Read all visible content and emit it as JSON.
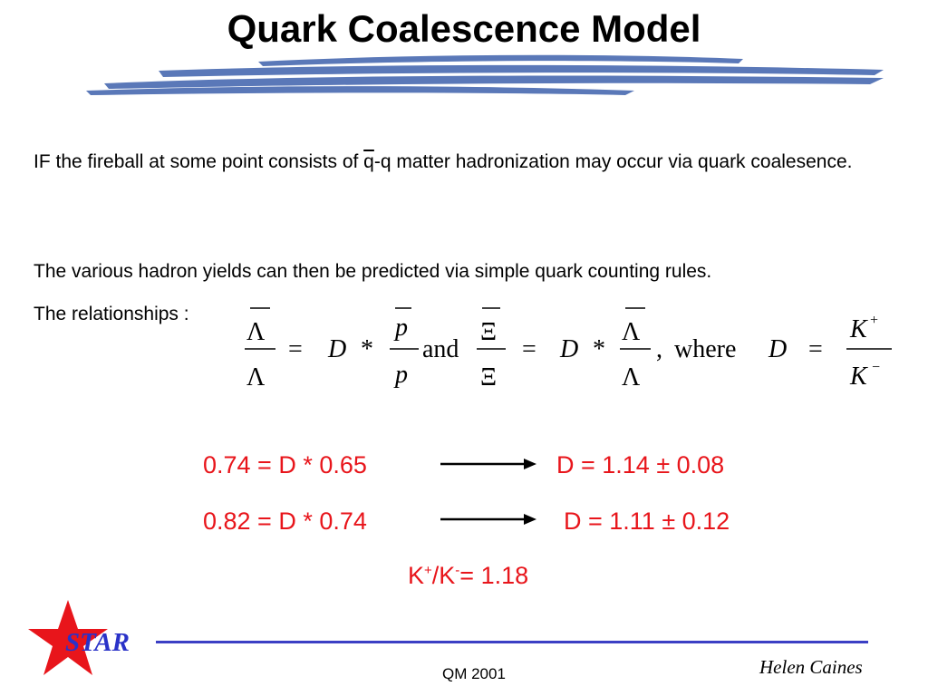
{
  "slide": {
    "title": "Quark Coalescence Model",
    "intro_before_q": "IF the fireball at some point consists of ",
    "q_bar": "q",
    "q_rest": "-q",
    "intro_after": " matter hadronization may occur via quark coalesence.",
    "counting_rules": "The various hadron yields can then be predicted via simple quark counting rules.",
    "relationships_label": "The relationships :",
    "equation": {
      "lambda": "Λ",
      "xi": "Ξ",
      "equals": "=",
      "d": "D",
      "star": "*",
      "p": "p",
      "and": "and",
      "comma": ",",
      "where": "where",
      "k": "K",
      "plus": "+",
      "minus": "−"
    },
    "results": [
      {
        "lhs": "0.74 = D * 0.65",
        "rhs": "D = 1.14 ± 0.08"
      },
      {
        "lhs": "0.82 = D * 0.74",
        "rhs": "D = 1.11 ± 0.12"
      }
    ],
    "kratio": {
      "k1": "K",
      "plus": "+",
      "mid": "/K",
      "minus": "-",
      "rest": "= 1.18"
    }
  },
  "footer": {
    "logo": "STAR",
    "conference": "QM 2001",
    "author": "Helen Caines"
  },
  "colors": {
    "accent_red": "#e8151b",
    "rule_blue": "#3b3fc4",
    "brush_blue": "#5a78b8",
    "star_red": "#e8151b"
  }
}
